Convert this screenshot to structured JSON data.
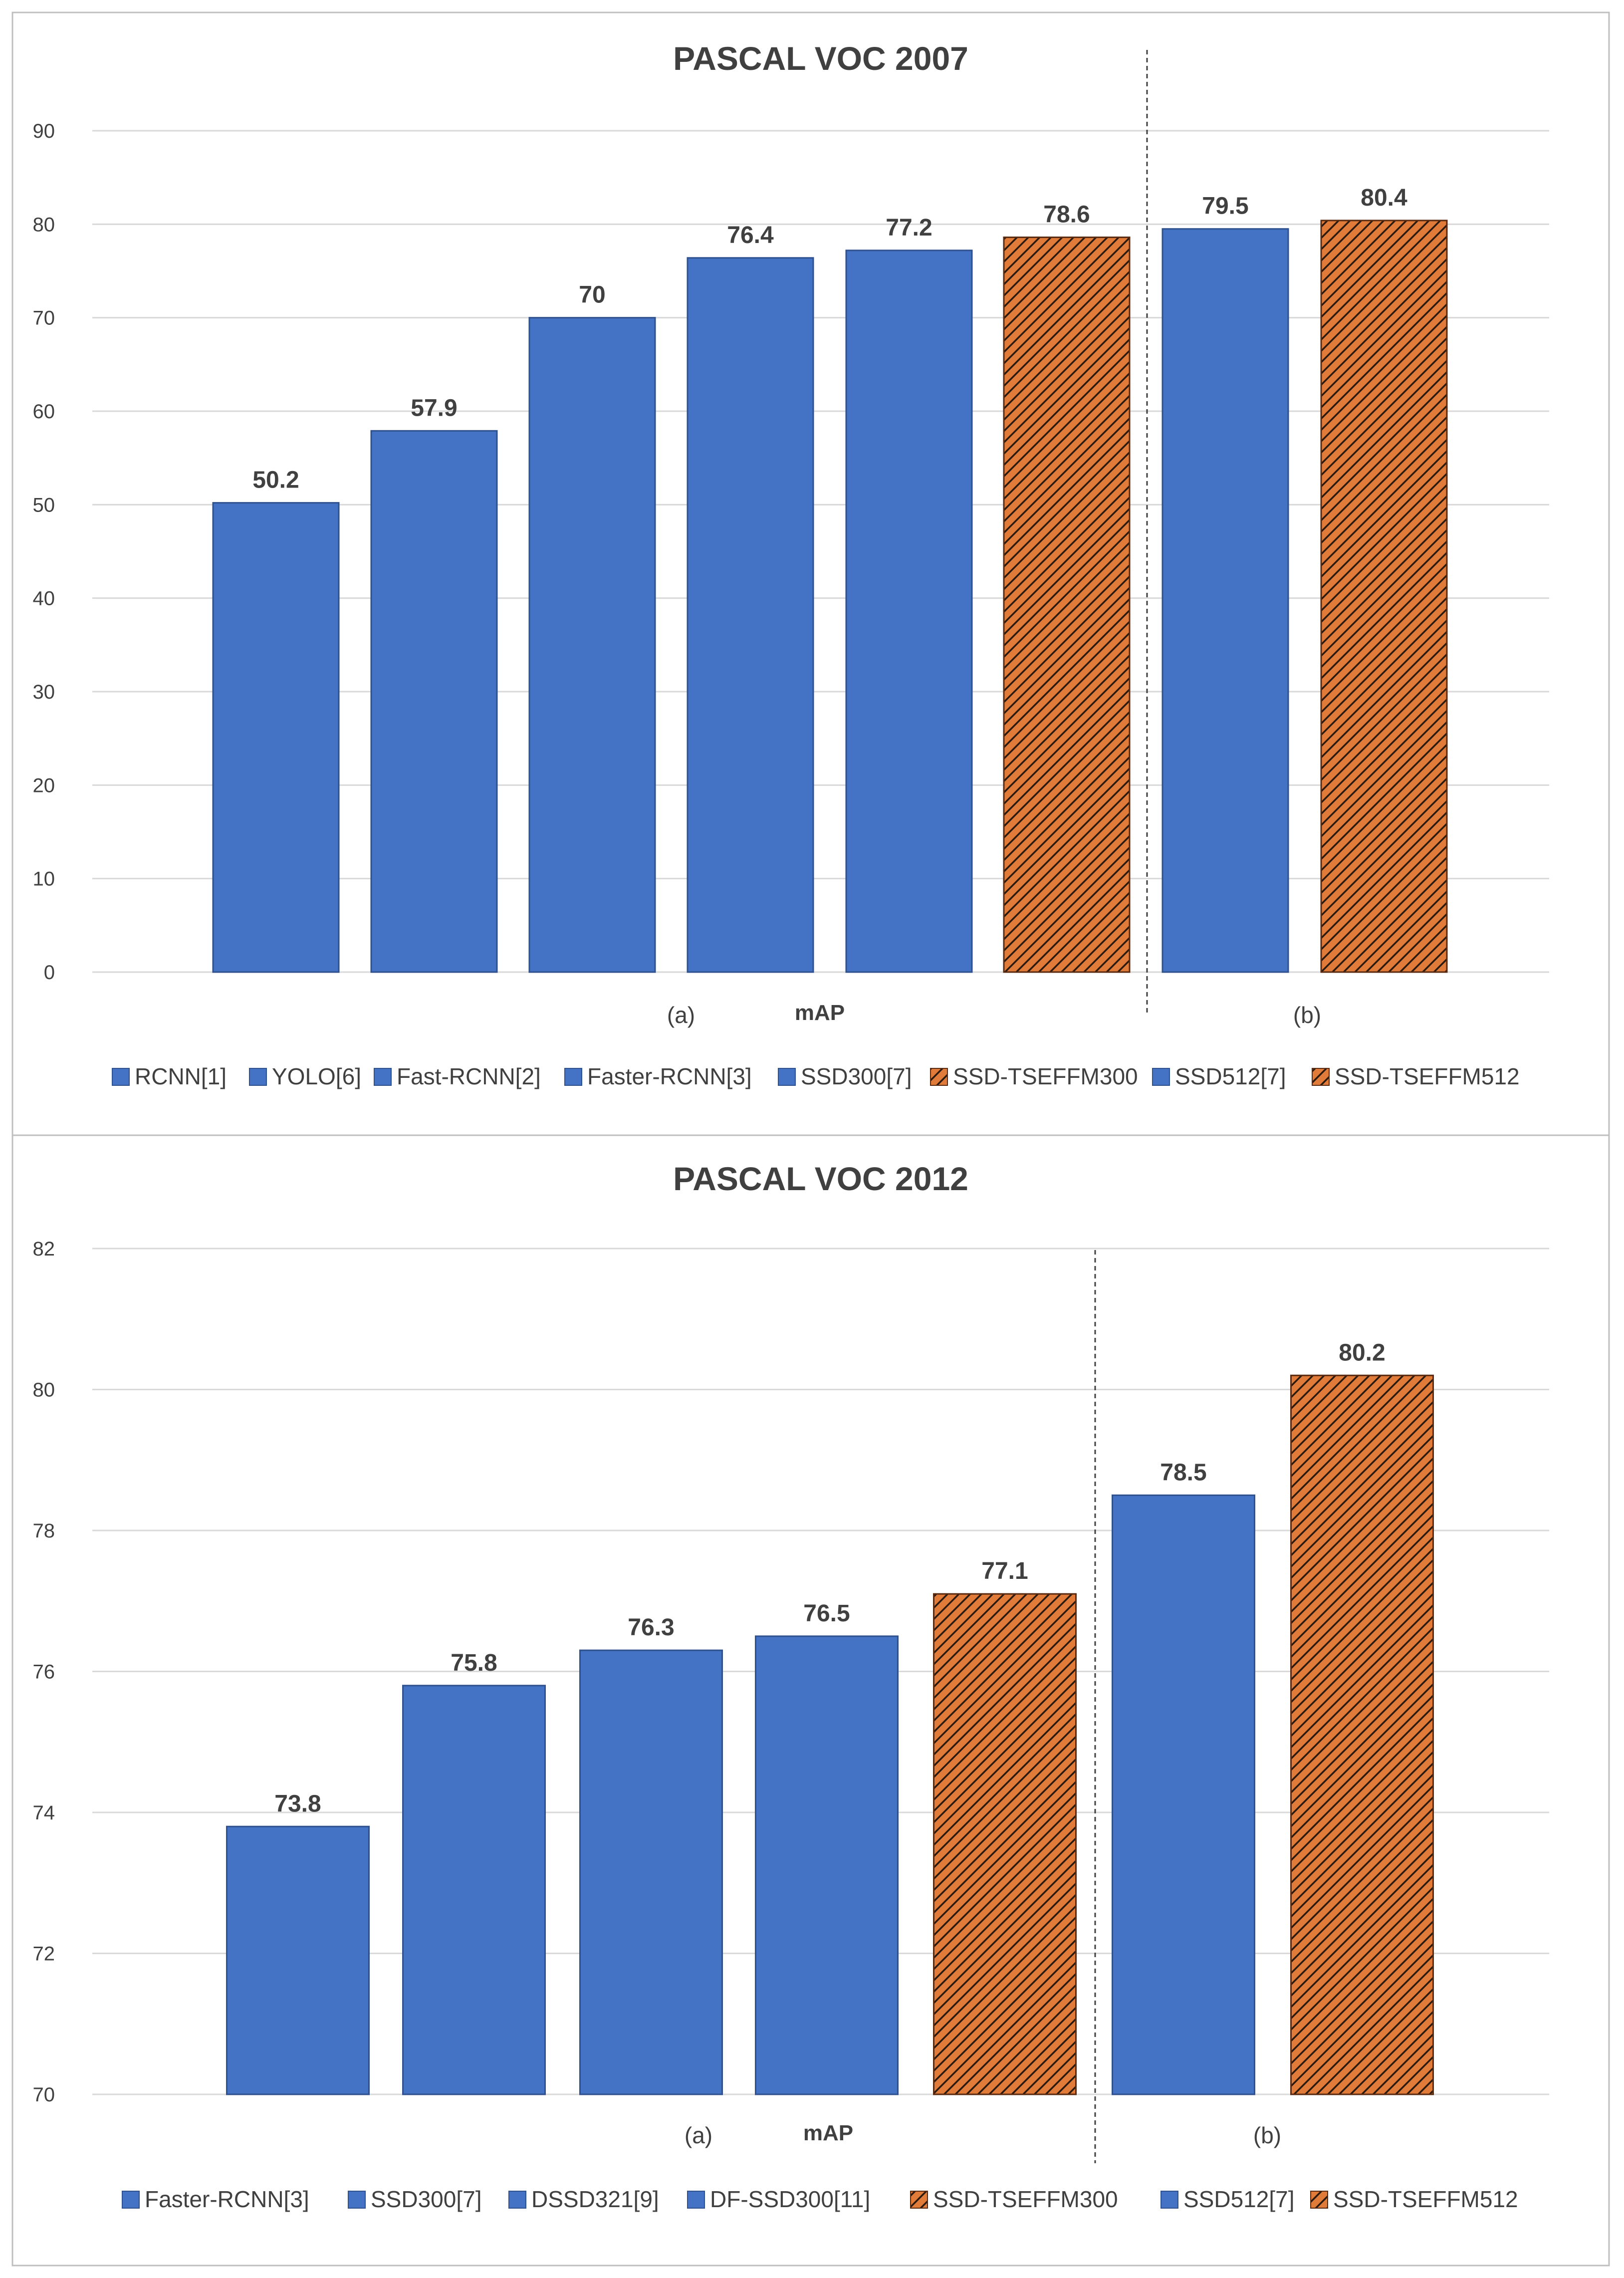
{
  "colors": {
    "blue": "#4472C4",
    "blue_edge": "#2F528F",
    "orange": "#E07B39",
    "orange_edge": "#5A2B10",
    "hatch_line": "#2B1A10",
    "grid": "#D9D9D9",
    "text": "#404040",
    "value_text": "#404040",
    "frame": "#BFBFBF",
    "divider": "#404040"
  },
  "chart_data": [
    {
      "type": "bar",
      "title": "PASCAL VOC 2007",
      "xlabel": "mAP",
      "ylabel": "",
      "ylim": [
        0,
        90
      ],
      "yticks": [
        "0",
        "10",
        "20",
        "30",
        "40",
        "50",
        "60",
        "70",
        "80",
        "90"
      ],
      "grid": true,
      "legend_position": "bottom",
      "group_labels": [
        "(a)",
        "(b)"
      ],
      "groups": [
        {
          "label": "(a)",
          "series": [
            "RCNN[1]",
            "YOLO[6]",
            "Fast-RCNN[2]",
            "Faster-RCNN[3]",
            "SSD300[7]",
            "SSD-TSEFFM300"
          ]
        },
        {
          "label": "(b)",
          "series": [
            "SSD512[7]",
            "SSD-TSEFFM512"
          ]
        }
      ],
      "series": [
        {
          "name": "RCNN[1]",
          "value": 50.2,
          "label": "50.2",
          "style": "blue"
        },
        {
          "name": "YOLO[6]",
          "value": 57.9,
          "label": "57.9",
          "style": "blue"
        },
        {
          "name": "Fast-RCNN[2]",
          "value": 70,
          "label": "70",
          "style": "blue"
        },
        {
          "name": "Faster-RCNN[3]",
          "value": 76.4,
          "label": "76.4",
          "style": "blue"
        },
        {
          "name": "SSD300[7]",
          "value": 77.2,
          "label": "77.2",
          "style": "blue"
        },
        {
          "name": "SSD-TSEFFM300",
          "value": 78.6,
          "label": "78.6",
          "style": "hatch"
        },
        {
          "name": "SSD512[7]",
          "value": 79.5,
          "label": "79.5",
          "style": "blue"
        },
        {
          "name": "SSD-TSEFFM512",
          "value": 80.4,
          "label": "80.4",
          "style": "hatch"
        }
      ]
    },
    {
      "type": "bar",
      "title": "PASCAL VOC 2012",
      "xlabel": "mAP",
      "ylabel": "",
      "ylim": [
        70,
        82
      ],
      "yticks": [
        "70",
        "72",
        "74",
        "76",
        "78",
        "80",
        "82"
      ],
      "grid": true,
      "legend_position": "bottom",
      "group_labels": [
        "(a)",
        "(b)"
      ],
      "groups": [
        {
          "label": "(a)",
          "series": [
            "Faster-RCNN[3]",
            "SSD300[7]",
            "DSSD321[9]",
            "DF-SSD300[11]",
            "SSD-TSEFFM300"
          ]
        },
        {
          "label": "(b)",
          "series": [
            "SSD512[7]",
            "SSD-TSEFFM512"
          ]
        }
      ],
      "series": [
        {
          "name": "Faster-RCNN[3]",
          "value": 73.8,
          "label": "73.8",
          "style": "blue"
        },
        {
          "name": "SSD300[7]",
          "value": 75.8,
          "label": "75.8",
          "style": "blue"
        },
        {
          "name": "DSSD321[9]",
          "value": 76.3,
          "label": "76.3",
          "style": "blue"
        },
        {
          "name": "DF-SSD300[11]",
          "value": 76.5,
          "label": "76.5",
          "style": "blue"
        },
        {
          "name": "SSD-TSEFFM300",
          "value": 77.1,
          "label": "77.1",
          "style": "hatch"
        },
        {
          "name": "SSD512[7]",
          "value": 78.5,
          "label": "78.5",
          "style": "blue"
        },
        {
          "name": "SSD-TSEFFM512",
          "value": 80.2,
          "label": "80.2",
          "style": "hatch"
        }
      ]
    }
  ]
}
